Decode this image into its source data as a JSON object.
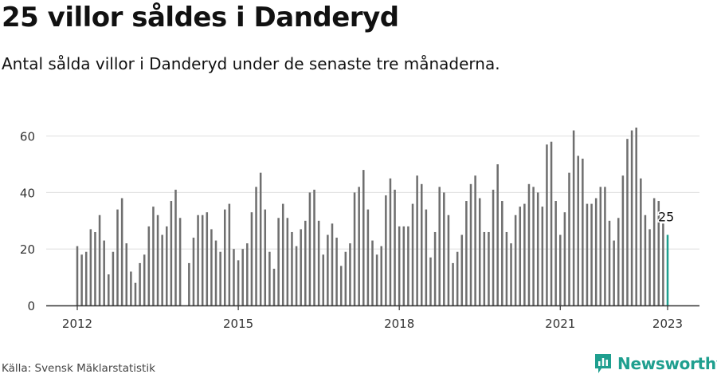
{
  "header": {
    "title": "25 villor såldes i Danderyd",
    "subtitle": "Antal sålda villor i Danderyd under de senaste tre månaderna."
  },
  "footer": {
    "source": "Källa: Svensk Mäklarstatistik",
    "brand": "Newsworthy"
  },
  "colors": {
    "bar": "#6f6f6f",
    "highlight": "#1f9f8f",
    "grid": "#dedede",
    "axis": "#333333",
    "text": "#333333"
  },
  "chart_data": {
    "type": "bar",
    "title": "25 villor såldes i Danderyd",
    "subtitle": "Antal sålda villor i Danderyd under de senaste tre månaderna.",
    "xlabel": "",
    "ylabel": "",
    "ylim": [
      0,
      63
    ],
    "yticks": [
      0,
      20,
      40,
      60
    ],
    "xticks": [
      2012,
      2015,
      2018,
      2021,
      2023
    ],
    "grid": true,
    "legend": "none",
    "x_start": "2012-01",
    "annotation": {
      "label": "25",
      "value": 25,
      "month": "2023-01"
    },
    "values": [
      21,
      18,
      19,
      27,
      26,
      32,
      23,
      11,
      19,
      34,
      38,
      22,
      12,
      8,
      15,
      18,
      28,
      35,
      32,
      25,
      28,
      37,
      41,
      31,
      null,
      15,
      24,
      32,
      32,
      33,
      27,
      23,
      19,
      34,
      36,
      20,
      16,
      20,
      22,
      33,
      42,
      47,
      34,
      19,
      13,
      31,
      36,
      31,
      26,
      21,
      27,
      30,
      40,
      41,
      30,
      18,
      25,
      29,
      24,
      14,
      19,
      22,
      40,
      42,
      48,
      34,
      23,
      18,
      21,
      39,
      45,
      41,
      28,
      28,
      28,
      36,
      46,
      43,
      34,
      17,
      26,
      42,
      40,
      32,
      15,
      19,
      25,
      37,
      43,
      46,
      38,
      26,
      26,
      41,
      50,
      37,
      26,
      22,
      32,
      35,
      36,
      43,
      42,
      40,
      35,
      57,
      58,
      37,
      25,
      33,
      47,
      62,
      53,
      52,
      36,
      36,
      38,
      42,
      42,
      30,
      23,
      31,
      46,
      59,
      62,
      63,
      45,
      32,
      27,
      38,
      37,
      29,
      25
    ]
  }
}
